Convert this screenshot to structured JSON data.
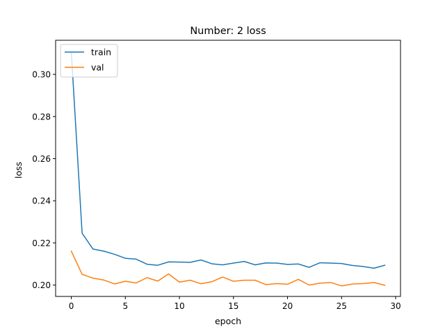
{
  "chart_data": {
    "type": "line",
    "title": "Number: 2 loss",
    "xlabel": "epoch",
    "ylabel": "loss",
    "xlim": [
      -1.45,
      30.45
    ],
    "ylim": [
      0.1946,
      0.3162
    ],
    "x_ticks": [
      0,
      5,
      10,
      15,
      20,
      25,
      30
    ],
    "x_tick_labels": [
      "0",
      "5",
      "10",
      "15",
      "20",
      "25",
      "30"
    ],
    "y_ticks": [
      0.2,
      0.22,
      0.24,
      0.26,
      0.28,
      0.3
    ],
    "y_tick_labels": [
      "0.20",
      "0.22",
      "0.24",
      "0.26",
      "0.28",
      "0.30"
    ],
    "grid": false,
    "legend_position": "upper-left",
    "x": [
      0,
      1,
      2,
      3,
      4,
      5,
      6,
      7,
      8,
      9,
      10,
      11,
      12,
      13,
      14,
      15,
      16,
      17,
      18,
      19,
      20,
      21,
      22,
      23,
      24,
      25,
      26,
      27,
      28,
      29
    ],
    "series": [
      {
        "name": "train",
        "color": "#1f77b4",
        "values": [
          0.3107,
          0.2246,
          0.2171,
          0.2161,
          0.2146,
          0.2127,
          0.2123,
          0.2099,
          0.2094,
          0.211,
          0.2109,
          0.2108,
          0.2119,
          0.2101,
          0.2096,
          0.2104,
          0.2112,
          0.2096,
          0.2105,
          0.2104,
          0.2098,
          0.21,
          0.2084,
          0.2106,
          0.2104,
          0.2102,
          0.2093,
          0.2088,
          0.208,
          0.2094
        ]
      },
      {
        "name": "val",
        "color": "#ff7f0e",
        "values": [
          0.2161,
          0.2051,
          0.2033,
          0.2024,
          0.2005,
          0.2018,
          0.201,
          0.2035,
          0.2019,
          0.2053,
          0.2014,
          0.2023,
          0.2006,
          0.2016,
          0.2038,
          0.2018,
          0.2023,
          0.2023,
          0.2002,
          0.2007,
          0.2004,
          0.2027,
          0.2,
          0.2009,
          0.2012,
          0.1996,
          0.2005,
          0.2007,
          0.2012,
          0.1999
        ]
      }
    ]
  }
}
